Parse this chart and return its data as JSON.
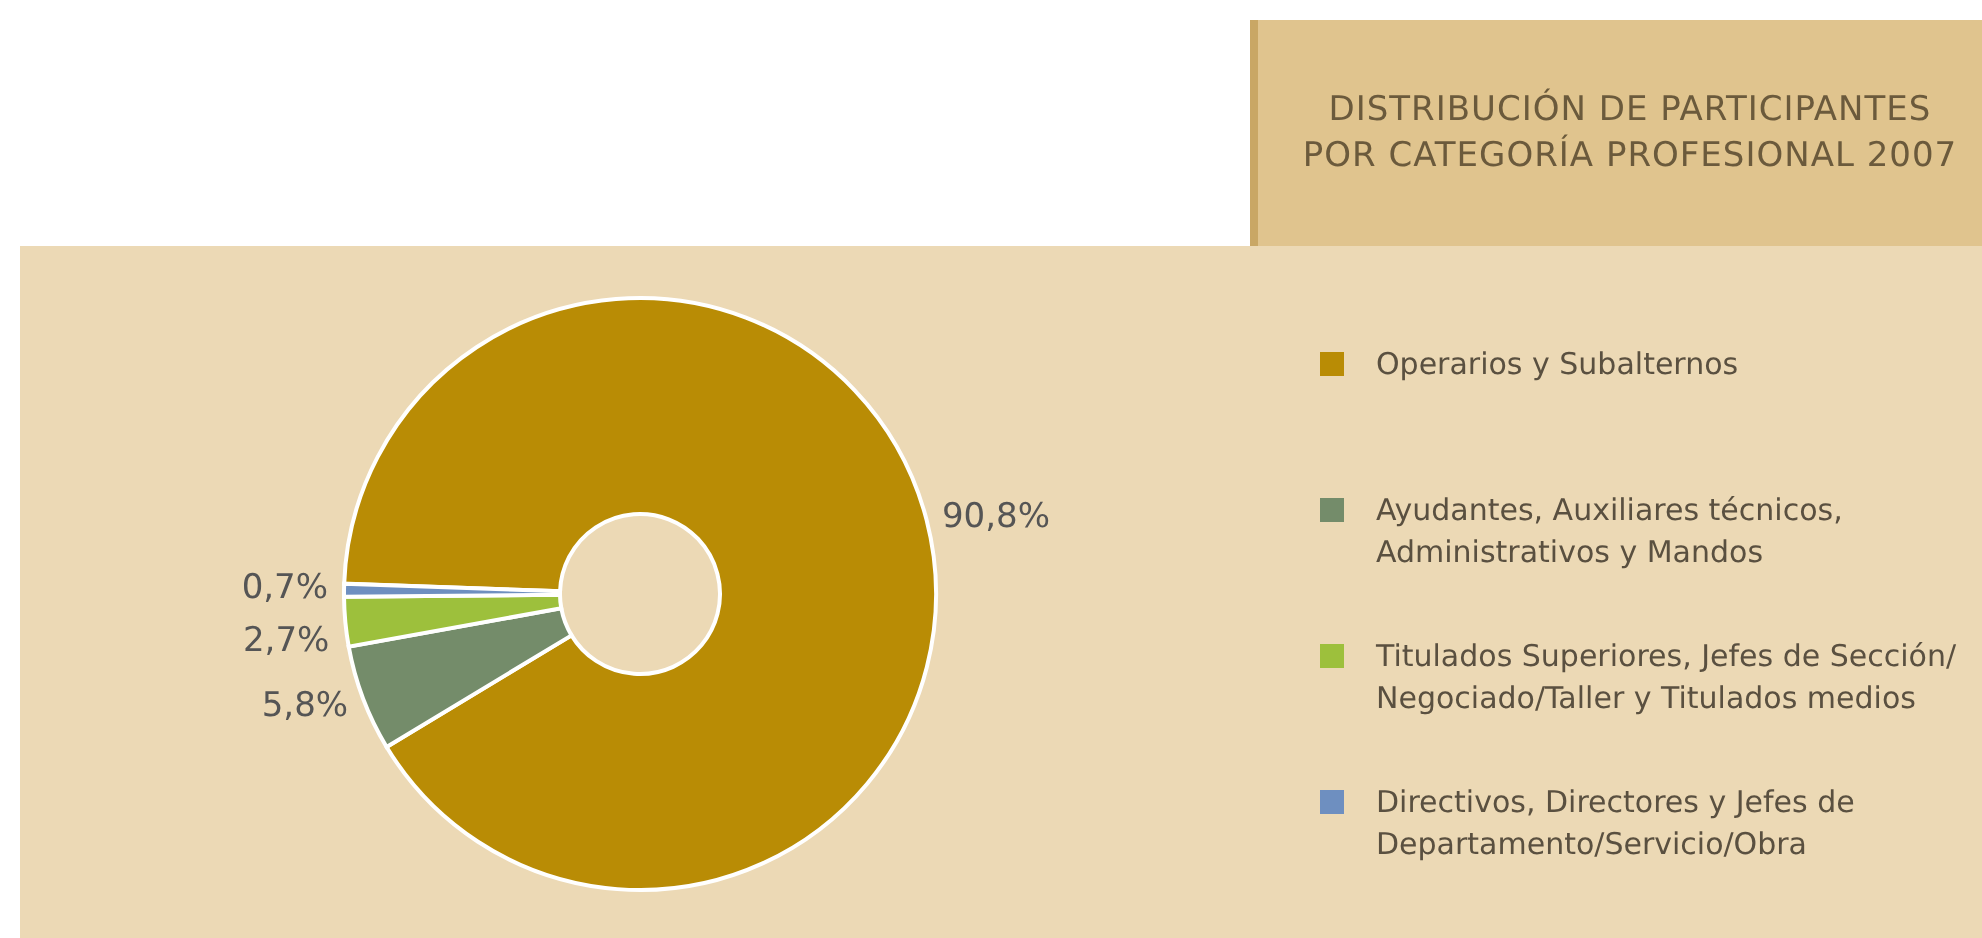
{
  "chart_data": {
    "type": "donut",
    "title": "DISTRIBUCIÓN DE PARTICIPANTES\nPOR CATEGORÍA PROFESIONAL 2007",
    "categories": [
      "Operarios y Subalternos",
      "Ayudantes, Auxiliares técnicos,\nAdministrativos y Mandos",
      "Titulados Superiores, Jefes de Sección/\nNegociado/Taller y Titulados medios",
      "Directivos, Directores y Jefes de\nDepartamento/Servicio/Obra"
    ],
    "values": [
      90.8,
      5.8,
      2.7,
      0.7
    ],
    "colors": [
      "#b98c05",
      "#748c6a",
      "#9dc03c",
      "#6e8fc0"
    ],
    "value_labels": [
      "90,8%",
      "5,8%",
      "2,7%",
      "0,7%"
    ],
    "legend": "right"
  }
}
